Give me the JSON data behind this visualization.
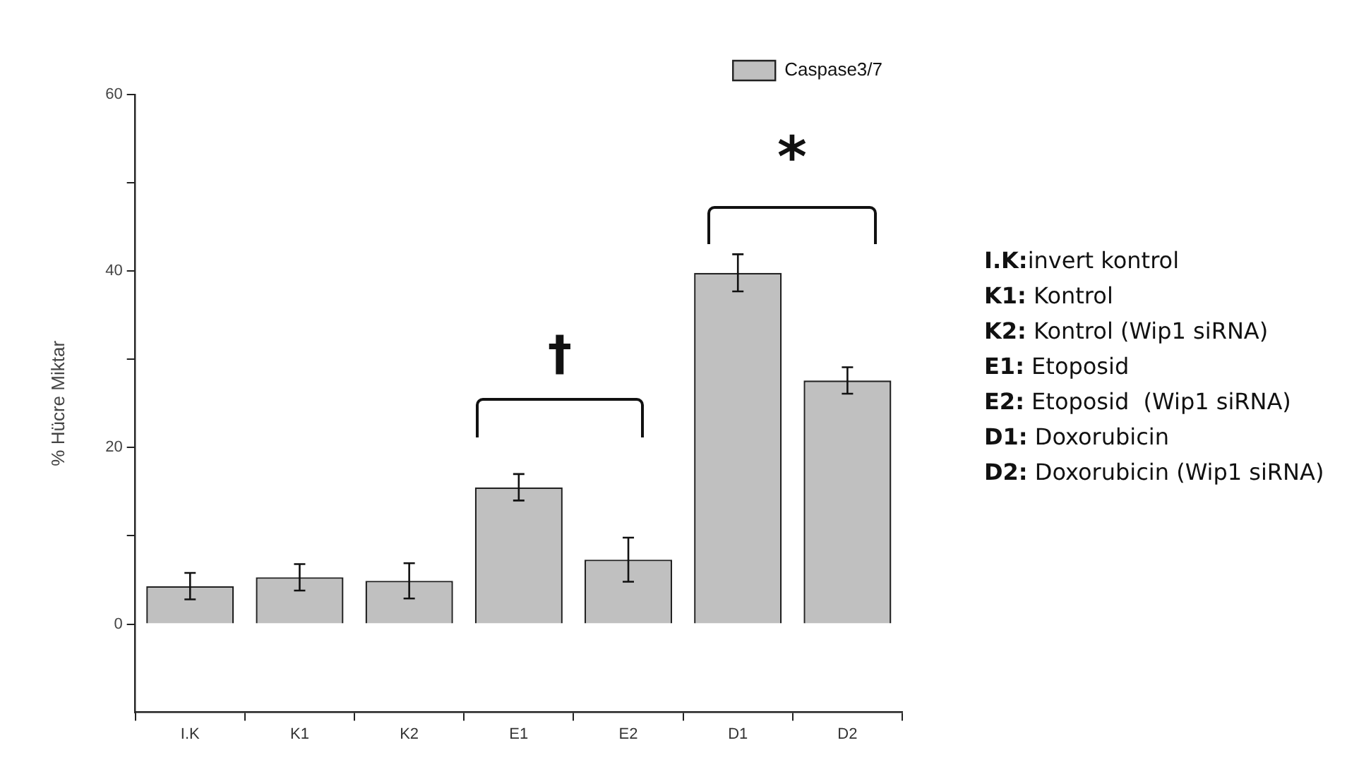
{
  "chart_data": {
    "type": "bar",
    "ylabel": "% Hücre Miktar",
    "categories": [
      "I.K",
      "K1",
      "K2",
      "E1",
      "E2",
      "D1",
      "D2"
    ],
    "series": [
      {
        "name": "Caspase3/7",
        "color": "#c0c0c0",
        "values": [
          4.3,
          5.3,
          4.9,
          15.5,
          7.3,
          39.8,
          27.6
        ],
        "errors": [
          1.5,
          1.5,
          2.0,
          1.5,
          2.5,
          2.1,
          1.5
        ]
      }
    ],
    "ylim": [
      -10,
      60
    ],
    "yticks": [
      0,
      {
        "value": 10,
        "label": null
      },
      20,
      {
        "value": 30,
        "label": null
      },
      40,
      {
        "value": 50,
        "label": null
      },
      60
    ],
    "grid": false,
    "legend": "top right",
    "annotations": [
      "†",
      "*",
      "I.K:invert kontrol",
      "K1: Kontrol",
      "K2: Kontrol (Wip1 siRNA)",
      "E1: Etoposid",
      "E2: Etoposid  (Wip1 siRNA)",
      "D1: Doxorubicin",
      "D2: Doxorubicin (Wip1 siRNA)"
    ]
  }
}
